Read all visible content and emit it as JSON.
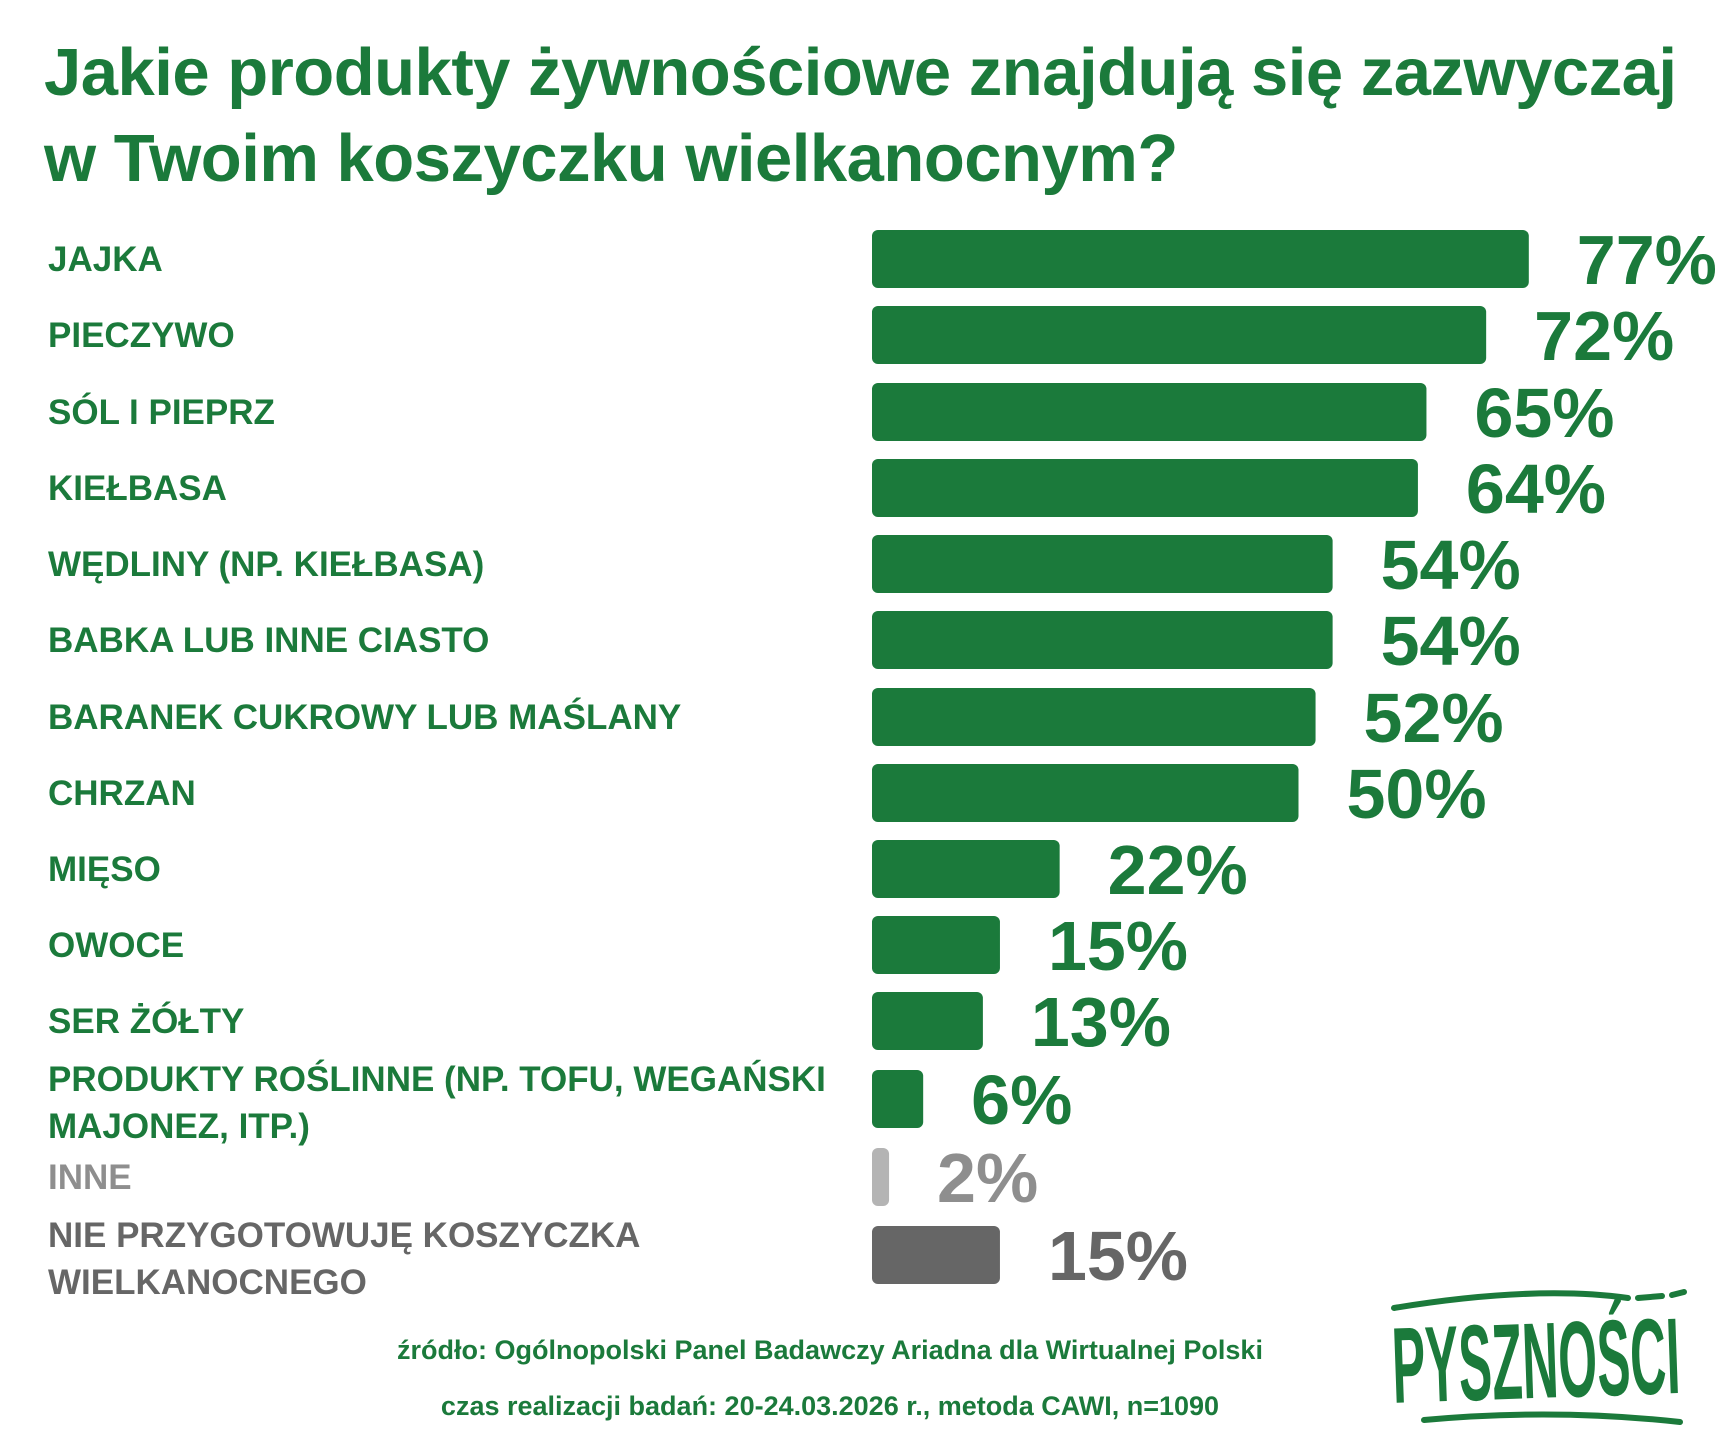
{
  "chart_data": {
    "type": "bar",
    "orientation": "horizontal",
    "title": "Jakie produkty żywnościowe znajdują się zazwyczaj w Twoim koszyczku wielkanocnym?",
    "categories": [
      "JAJKA",
      "PIECZYWO",
      "SÓL I PIEPRZ",
      "KIEŁBASA",
      "WĘDLINY (NP. KIEŁBASA)",
      "BABKA LUB INNE CIASTO",
      "BARANEK CUKROWY LUB MAŚLANY",
      "CHRZAN",
      "MIĘSO",
      "OWOCE",
      "SER ŻÓŁTY",
      "PRODUKTY ROŚLINNE (NP. TOFU, WEGAŃSKI MAJONEZ, ITP.)",
      "INNE",
      "NIE PRZYGOTOWUJĘ KOSZYCZKA WIELKANOCNEGO"
    ],
    "values": [
      77,
      72,
      65,
      64,
      54,
      54,
      52,
      50,
      22,
      15,
      13,
      6,
      2,
      15
    ],
    "value_labels": [
      "77%",
      "72%",
      "65%",
      "64%",
      "54%",
      "54%",
      "52%",
      "50%",
      "22%",
      "15%",
      "13%",
      "6%",
      "2%",
      "15%"
    ],
    "xlim": [
      0,
      100
    ],
    "grid": false,
    "legend": "none",
    "colors": {
      "primary": "#1b7a3b",
      "other": "#b4b4b4",
      "other_text": "#8e8e8e",
      "none": "#666666"
    },
    "color_keys": [
      "primary",
      "primary",
      "primary",
      "primary",
      "primary",
      "primary",
      "primary",
      "primary",
      "primary",
      "primary",
      "primary",
      "primary",
      "other",
      "none"
    ]
  },
  "source": {
    "line1": "źródło: Ogólnopolski Panel Badawczy Ariadna dla Wirtualnej Polski",
    "line2": "czas realizacji badań: 20-24.03.2026 r., metoda CAWI, n=1090"
  },
  "logo": {
    "text": "PYSZNOŚCI",
    "color": "#1b7a3b"
  }
}
